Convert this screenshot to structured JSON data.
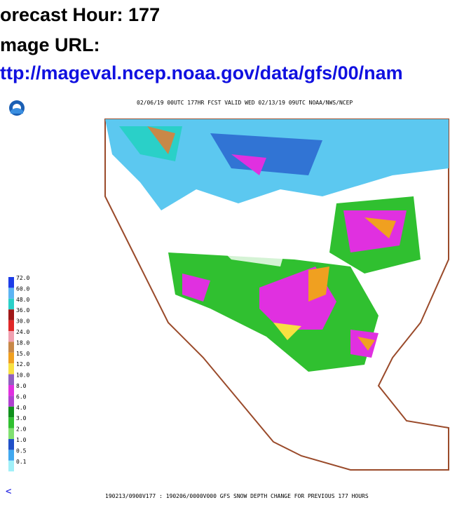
{
  "header": {
    "line1": "orecast Hour: 177",
    "line2": "mage URL:",
    "url": "ttp://mageval.ncep.noaa.gov/data/gfs/00/nam"
  },
  "map": {
    "title": "02/06/19 00UTC 177HR FCST VALID WED 02/13/19 09UTC NOAA/NWS/NCEP",
    "footer": "190213/0900V177 : 190206/0000V000 GFS SNOW DEPTH CHANGE FOR PREVIOUS 177 HOURS",
    "nav": "<",
    "legend": [
      {
        "label": "72.0",
        "color": "#1c3ce8"
      },
      {
        "label": "60.0",
        "color": "#5cb4f4"
      },
      {
        "label": "48.0",
        "color": "#2ad0c8"
      },
      {
        "label": "36.0",
        "color": "#a01818"
      },
      {
        "label": "30.0",
        "color": "#e02828"
      },
      {
        "label": "24.0",
        "color": "#f0a0b0"
      },
      {
        "label": "18.0",
        "color": "#c88848"
      },
      {
        "label": "15.0",
        "color": "#f0a020"
      },
      {
        "label": "12.0",
        "color": "#f8e040"
      },
      {
        "label": "10.0",
        "color": "#9060c0"
      },
      {
        "label": "8.0",
        "color": "#e030e0"
      },
      {
        "label": "6.0",
        "color": "#b040d0"
      },
      {
        "label": "4.0",
        "color": "#10901c"
      },
      {
        "label": "3.0",
        "color": "#30c030"
      },
      {
        "label": "2.0",
        "color": "#80e070"
      },
      {
        "label": "1.0",
        "color": "#2050c8"
      },
      {
        "label": "0.5",
        "color": "#40a8f0"
      },
      {
        "label": "0.1",
        "color": "#a0f0f8"
      }
    ]
  }
}
